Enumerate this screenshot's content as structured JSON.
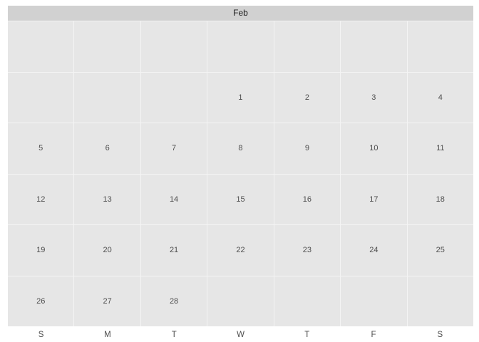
{
  "calendar": {
    "month": "Feb",
    "weekdays": [
      "S",
      "M",
      "T",
      "W",
      "T",
      "F",
      "S"
    ],
    "weeks": [
      [
        "",
        "",
        "",
        "",
        "",
        "",
        ""
      ],
      [
        "",
        "",
        "",
        "1",
        "2",
        "3",
        "4"
      ],
      [
        "5",
        "6",
        "7",
        "8",
        "9",
        "10",
        "11"
      ],
      [
        "12",
        "13",
        "14",
        "15",
        "16",
        "17",
        "18"
      ],
      [
        "19",
        "20",
        "21",
        "22",
        "23",
        "24",
        "25"
      ],
      [
        "26",
        "27",
        "28",
        "",
        "",
        "",
        ""
      ]
    ]
  },
  "colors": {
    "header_bg": "#d1d1d1",
    "cell_bg": "#e6e6e6",
    "gridline": "#f4f4f4",
    "text": "#4d4d4d"
  }
}
